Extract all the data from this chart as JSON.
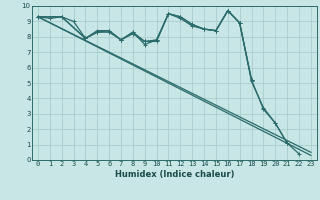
{
  "xlabel": "Humidex (Indice chaleur)",
  "ylabel": "",
  "xlim": [
    -0.5,
    23.5
  ],
  "ylim": [
    0,
    10
  ],
  "xtick_vals": [
    0,
    1,
    2,
    3,
    4,
    5,
    6,
    7,
    8,
    9,
    10,
    11,
    12,
    13,
    14,
    15,
    16,
    17,
    18,
    19,
    20,
    21,
    22,
    23
  ],
  "xtick_labels": [
    "0",
    "1",
    "2",
    "3",
    "4",
    "5",
    "6",
    "7",
    "8",
    "9",
    "10",
    "11",
    "12",
    "13",
    "14",
    "15",
    "16",
    "17",
    "18",
    "19",
    "20",
    "21",
    "22",
    "23"
  ],
  "ytick_vals": [
    0,
    1,
    2,
    3,
    4,
    5,
    6,
    7,
    8,
    9,
    10
  ],
  "ytick_labels": [
    "0",
    "1",
    "2",
    "3",
    "4",
    "5",
    "6",
    "7",
    "8",
    "9",
    "10"
  ],
  "bg_color": "#c8e6e6",
  "grid_color": "#a8cccc",
  "line_color": "#2a6b6b",
  "straight_line1": {
    "x": [
      0,
      23
    ],
    "y": [
      9.3,
      0.5
    ]
  },
  "straight_line2": {
    "x": [
      0,
      23
    ],
    "y": [
      9.3,
      0.3
    ]
  },
  "jagged1_x": [
    0,
    2,
    4,
    5,
    6,
    7,
    8,
    9,
    10,
    11,
    12,
    13,
    14,
    15,
    16,
    17,
    18
  ],
  "jagged1_y": [
    9.3,
    9.3,
    7.9,
    8.3,
    8.3,
    7.8,
    8.2,
    7.7,
    7.7,
    9.5,
    9.3,
    8.8,
    8.5,
    8.4,
    9.7,
    8.9,
    5.2
  ],
  "jagged2_x": [
    0,
    1,
    2,
    3,
    4,
    5,
    6,
    7,
    8,
    9,
    10,
    11,
    12,
    13,
    14,
    15,
    16,
    17,
    18,
    19,
    20,
    21
  ],
  "jagged2_y": [
    9.3,
    9.2,
    9.3,
    9.0,
    7.9,
    8.3,
    8.4,
    7.8,
    8.3,
    7.7,
    7.8,
    9.5,
    9.3,
    8.8,
    8.5,
    8.4,
    9.7,
    8.9,
    5.2,
    3.3,
    2.4,
    1.1
  ],
  "jagged3_x": [
    0,
    2,
    4,
    5,
    6,
    7,
    8,
    9,
    10,
    11,
    12,
    13,
    14,
    15,
    16,
    17,
    18,
    19,
    20,
    21,
    22
  ],
  "jagged3_y": [
    9.3,
    9.3,
    7.9,
    8.4,
    8.4,
    7.8,
    8.3,
    7.5,
    7.8,
    9.5,
    9.2,
    8.7,
    8.5,
    8.4,
    9.7,
    8.9,
    5.1,
    3.4,
    2.4,
    1.1,
    0.4
  ]
}
